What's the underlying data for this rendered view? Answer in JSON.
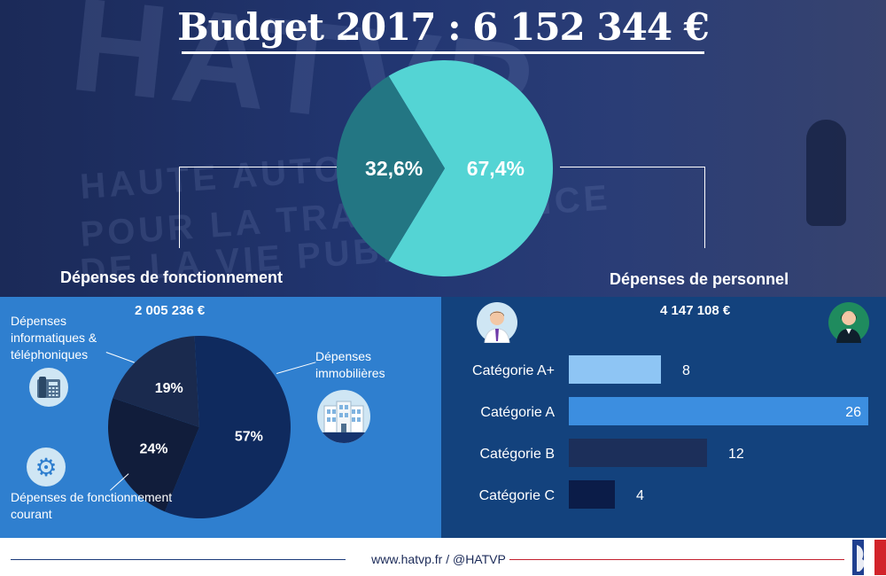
{
  "title": "Budget 2017 : 6 152 344 €",
  "background_text": {
    "logo": "HATVP",
    "line1": "HAUTE AUTORITÉ",
    "line2": "POUR LA TRANSPARENCE",
    "line3": "DE LA VIE PUBLIQUE"
  },
  "sections": {
    "fonctionnement": {
      "title": "Dépenses de fonctionnement",
      "amount": "2 005 236 €"
    },
    "personnel": {
      "title": "Dépenses de personnel",
      "amount": "4 147 108 €"
    }
  },
  "annotations": {
    "informatiques": "Dépenses informatiques & téléphoniques",
    "immobilieres": "Dépenses immobilières",
    "courant": "Dépenses de fonctionnement courant"
  },
  "footer": {
    "text": "www.hatvp.fr / @HATVP"
  },
  "colors": {
    "pie_personnel": "#54d4d4",
    "pie_fonctionnement": "#237683",
    "immobilieres": "#0f2a5e",
    "courant": "#111d3b",
    "informatiques": "#1a2a4e",
    "left_panel": "#2f7fcf",
    "right_panel": "#13427d",
    "bar_aplus": "#8ec5f4",
    "bar_a": "#3c8ee0",
    "bar_b": "#1c2f5a",
    "bar_c": "#0b1c48"
  },
  "chart_data": [
    {
      "type": "pie",
      "title": "Budget 2017 : 6 152 344 €",
      "slices": [
        {
          "label": "Dépenses de personnel",
          "value": 67.4,
          "display": "67,4%"
        },
        {
          "label": "Dépenses de fonctionnement",
          "value": 32.6,
          "display": "32,6%"
        }
      ]
    },
    {
      "type": "pie",
      "title": "Dépenses de fonctionnement",
      "slices": [
        {
          "label": "Dépenses immobilières",
          "value": 57,
          "display": "57%"
        },
        {
          "label": "Dépenses de fonctionnement courant",
          "value": 24,
          "display": "24%"
        },
        {
          "label": "Dépenses informatiques & téléphoniques",
          "value": 19,
          "display": "19%"
        }
      ]
    },
    {
      "type": "bar",
      "orientation": "horizontal",
      "title": "Dépenses de personnel",
      "categories": [
        "Catégorie A+",
        "Catégorie A",
        "Catégorie B",
        "Catégorie C"
      ],
      "values": [
        8,
        26,
        12,
        4
      ],
      "xlim": [
        0,
        26
      ]
    }
  ]
}
